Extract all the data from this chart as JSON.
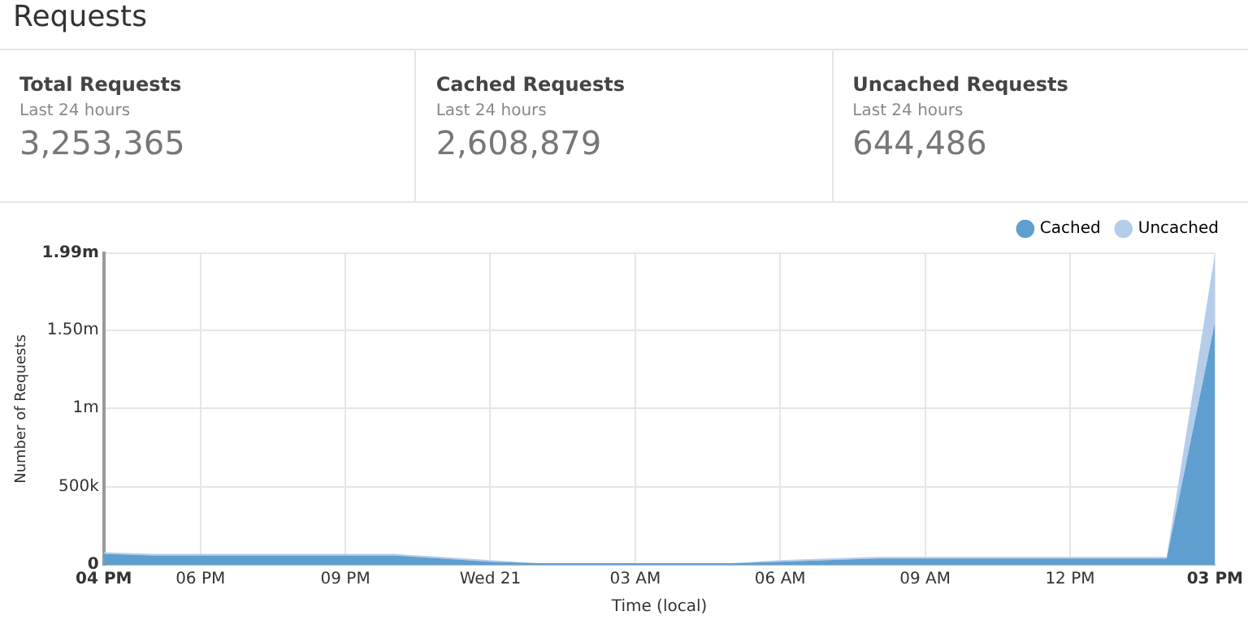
{
  "chart_data": [
    {
      "type": "other",
      "title": "Requests",
      "annotations": [
        "Total Requests",
        "Last 24 hours",
        "3,253,365",
        "Cached Requests",
        "Last 24 hours",
        "2,608,879",
        "Uncached Requests",
        "Last 24 hours",
        "644,486"
      ]
    },
    {
      "type": "area",
      "stacked": true,
      "xlabel": "Time (local)",
      "ylabel": "Number of Requests",
      "categories": [
        "04 PM",
        null,
        "06 PM",
        null,
        null,
        "09 PM",
        null,
        null,
        "Wed 21",
        null,
        null,
        "03 AM",
        null,
        null,
        "06 AM",
        null,
        null,
        "09 AM",
        null,
        null,
        "12 PM",
        null,
        null,
        "03 PM"
      ],
      "series": [
        {
          "name": "Cached",
          "color": "#5f9fcf",
          "values": [
            70000,
            60000,
            60000,
            60000,
            60000,
            60000,
            60000,
            40000,
            20000,
            10000,
            10000,
            10000,
            10000,
            10000,
            20000,
            30000,
            40000,
            40000,
            40000,
            40000,
            40000,
            40000,
            40000,
            1550000
          ]
        },
        {
          "name": "Uncached",
          "color": "#b4cdea",
          "values": [
            10000,
            10000,
            10000,
            10000,
            10000,
            10000,
            10000,
            10000,
            10000,
            0,
            0,
            0,
            0,
            0,
            10000,
            10000,
            10000,
            10000,
            10000,
            10000,
            10000,
            10000,
            10000,
            440000
          ]
        }
      ],
      "ylim": [
        0,
        1990000
      ],
      "yticks": [
        0,
        {
          "value": 500000,
          "label": "500k"
        },
        {
          "value": 1000000,
          "label": "1m"
        },
        {
          "value": 1500000,
          "label": "1.50m"
        },
        {
          "value": 1990000,
          "label": "1.99m"
        }
      ],
      "grid": true,
      "legend": "top right"
    }
  ]
}
